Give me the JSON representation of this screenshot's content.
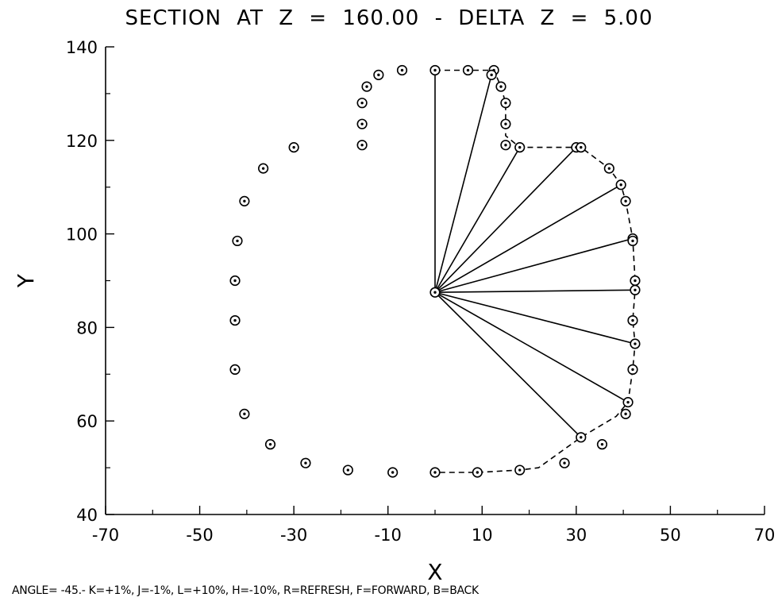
{
  "title": "SECTION AT Z = 160.00 - DELTA Z = 5.00",
  "status_line": "ANGLE= -45.- K=+1%, J=-1%, L=+10%, H=-10%, R=REFRESH, F=FORWARD, B=BACK",
  "chart_data": {
    "type": "scatter",
    "title": "SECTION AT Z = 160.00 - DELTA Z = 5.00",
    "xlabel": "X",
    "ylabel": "Y",
    "xlim": [
      -70,
      70
    ],
    "ylim": [
      40,
      140
    ],
    "xticks": [
      -70,
      -50,
      -30,
      -10,
      10,
      30,
      50,
      70
    ],
    "yticks": [
      40,
      60,
      80,
      100,
      120,
      140
    ],
    "grid": false,
    "colors": {
      "line": "#000000",
      "background": "#ffffff"
    },
    "section_points": [
      [
        0,
        135
      ],
      [
        7,
        135
      ],
      [
        12.5,
        135
      ],
      [
        14,
        131.5
      ],
      [
        15,
        128
      ],
      [
        15,
        123.5
      ],
      [
        15,
        119
      ],
      [
        18,
        118.5
      ],
      [
        30,
        118.5
      ],
      [
        31,
        118.5
      ],
      [
        37,
        114
      ],
      [
        39.5,
        110.5
      ],
      [
        40.5,
        107
      ],
      [
        42,
        99
      ],
      [
        42,
        98.5
      ],
      [
        42.5,
        90
      ],
      [
        42.5,
        88
      ],
      [
        42,
        81.5
      ],
      [
        42.5,
        76.5
      ],
      [
        42,
        71
      ],
      [
        41,
        64
      ],
      [
        40.5,
        61.5
      ],
      [
        35.5,
        55
      ],
      [
        31,
        56.5
      ],
      [
        27.5,
        51
      ],
      [
        18,
        49.5
      ],
      [
        9,
        49
      ],
      [
        0,
        49
      ],
      [
        -9,
        49
      ],
      [
        -18.5,
        49.5
      ],
      [
        -27.5,
        51
      ],
      [
        -35,
        55
      ],
      [
        -40.5,
        61.5
      ],
      [
        -42.5,
        71
      ],
      [
        -42.5,
        81.5
      ],
      [
        -42.5,
        90
      ],
      [
        -42,
        98.5
      ],
      [
        -40.5,
        107
      ],
      [
        -36.5,
        114
      ],
      [
        -30,
        118.5
      ],
      [
        -15.5,
        119
      ],
      [
        -15.5,
        123.5
      ],
      [
        -15.5,
        128
      ],
      [
        -14.5,
        131.5
      ],
      [
        -12,
        134
      ],
      [
        -7,
        135
      ],
      [
        0,
        87.5
      ],
      [
        12,
        134
      ]
    ],
    "outline_dashed": [
      [
        0,
        135
      ],
      [
        12.5,
        135
      ],
      [
        14,
        131.5
      ],
      [
        15,
        128
      ],
      [
        15,
        123.5
      ],
      [
        15,
        121
      ],
      [
        18,
        118.5
      ],
      [
        30,
        118.5
      ],
      [
        31,
        118.5
      ],
      [
        37,
        114
      ],
      [
        39.5,
        110.5
      ],
      [
        40.5,
        107
      ],
      [
        42,
        99
      ],
      [
        42.5,
        90
      ],
      [
        42.5,
        88
      ],
      [
        42,
        81.5
      ],
      [
        42.5,
        76.5
      ],
      [
        42,
        71
      ],
      [
        41,
        64
      ],
      [
        38.5,
        61
      ],
      [
        31,
        56.5
      ],
      [
        22,
        50
      ],
      [
        18,
        49.5
      ],
      [
        9,
        49
      ],
      [
        0,
        49
      ]
    ],
    "ray_origin": [
      0,
      87.5
    ],
    "ray_endpoints": [
      [
        0,
        135
      ],
      [
        12,
        134
      ],
      [
        18,
        118.5
      ],
      [
        30,
        118.5
      ],
      [
        39.5,
        110.5
      ],
      [
        42,
        99
      ],
      [
        42.5,
        88
      ],
      [
        42.5,
        76.5
      ],
      [
        41,
        64
      ],
      [
        31,
        56.5
      ]
    ]
  }
}
